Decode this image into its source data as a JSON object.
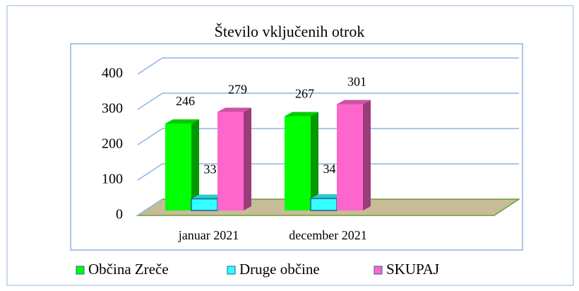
{
  "chart_data": {
    "type": "bar3d",
    "title": "Število vključenih otrok",
    "categories": [
      "januar 2021",
      "december 2021"
    ],
    "series": [
      {
        "name": "Občina Zreče",
        "color": "#00ff00",
        "values": [
          246,
          267
        ]
      },
      {
        "name": "Druge občine",
        "color": "#33ffff",
        "values": [
          33,
          34
        ]
      },
      {
        "name": "SKUPAJ",
        "color": "#ff66cc",
        "values": [
          279,
          301
        ]
      }
    ],
    "ylim": [
      0,
      400
    ],
    "yticks": [
      0,
      100,
      200,
      300,
      400
    ],
    "grid": true,
    "legend": "bottom"
  }
}
